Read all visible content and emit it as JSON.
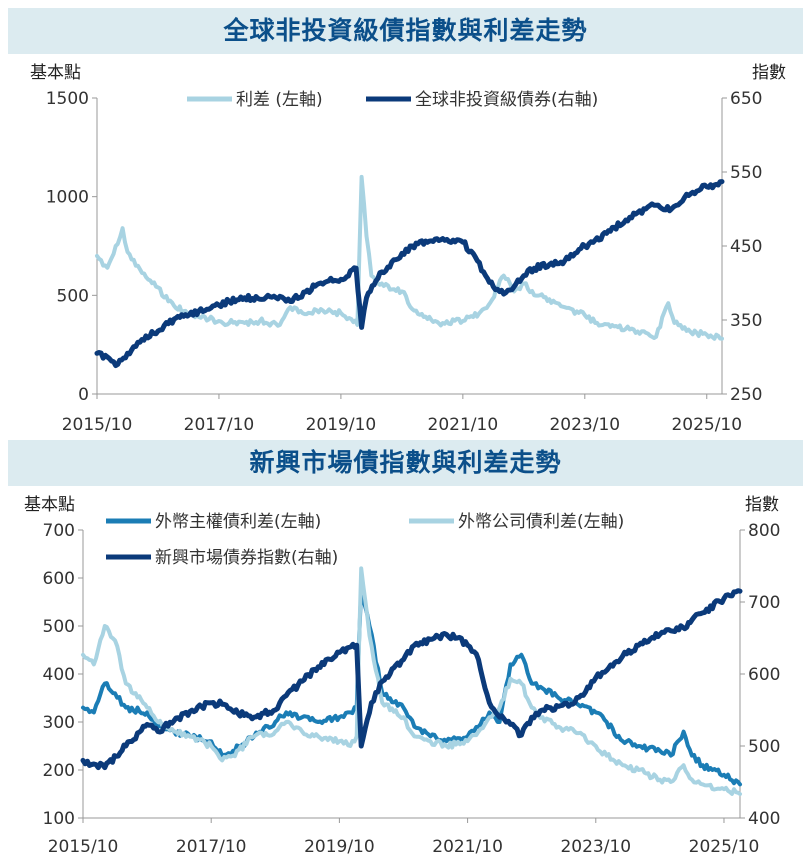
{
  "colors": {
    "title_bg": "#dcebf0",
    "title_text": "#0b4f8a",
    "dark_navy": "#0b3a7a",
    "mid_blue": "#1b7db5",
    "light_blue": "#a8d3e2"
  },
  "chart_data": [
    {
      "type": "line",
      "title": "全球非投資級債指數與利差走勢",
      "left_unit": "基本點",
      "right_unit": "指數",
      "x_ticks": [
        "2015/10",
        "2017/10",
        "2019/10",
        "2021/10",
        "2023/10",
        "2025/10"
      ],
      "y_left_ticks": [
        "0",
        "500",
        "1000",
        "1500"
      ],
      "y_right_ticks": [
        "250",
        "350",
        "450",
        "550",
        "650"
      ],
      "y_left_lim": [
        0,
        1500
      ],
      "y_right_lim": [
        250,
        650
      ],
      "series": [
        {
          "name": "利差 (左軸)",
          "axis": "left",
          "color": "#a8d3e2",
          "points": [
            [
              2015.83,
              700
            ],
            [
              2016.0,
              640
            ],
            [
              2016.17,
              760
            ],
            [
              2016.25,
              840
            ],
            [
              2016.33,
              720
            ],
            [
              2016.5,
              650
            ],
            [
              2016.67,
              580
            ],
            [
              2016.83,
              540
            ],
            [
              2017.0,
              470
            ],
            [
              2017.25,
              420
            ],
            [
              2017.5,
              390
            ],
            [
              2017.83,
              370
            ],
            [
              2018.0,
              360
            ],
            [
              2018.25,
              360
            ],
            [
              2018.5,
              370
            ],
            [
              2018.83,
              350
            ],
            [
              2019.0,
              440
            ],
            [
              2019.17,
              420
            ],
            [
              2019.33,
              410
            ],
            [
              2019.5,
              430
            ],
            [
              2019.67,
              420
            ],
            [
              2019.83,
              410
            ],
            [
              2020.0,
              380
            ],
            [
              2020.1,
              350
            ],
            [
              2020.17,
              1100
            ],
            [
              2020.25,
              800
            ],
            [
              2020.33,
              600
            ],
            [
              2020.5,
              560
            ],
            [
              2020.67,
              530
            ],
            [
              2020.83,
              520
            ],
            [
              2021.0,
              430
            ],
            [
              2021.25,
              380
            ],
            [
              2021.5,
              360
            ],
            [
              2021.83,
              370
            ],
            [
              2022.0,
              390
            ],
            [
              2022.25,
              450
            ],
            [
              2022.5,
              600
            ],
            [
              2022.67,
              520
            ],
            [
              2022.83,
              560
            ],
            [
              2023.0,
              500
            ],
            [
              2023.25,
              480
            ],
            [
              2023.5,
              440
            ],
            [
              2023.83,
              400
            ],
            [
              2024.0,
              360
            ],
            [
              2024.25,
              340
            ],
            [
              2024.5,
              330
            ],
            [
              2024.83,
              310
            ],
            [
              2025.0,
              290
            ],
            [
              2025.2,
              460
            ],
            [
              2025.3,
              360
            ],
            [
              2025.5,
              320
            ],
            [
              2025.83,
              300
            ],
            [
              2026.08,
              280
            ]
          ]
        },
        {
          "name": "全球非投資級債券(右軸)",
          "axis": "right",
          "color": "#0b3a7a",
          "points": [
            [
              2015.83,
              305
            ],
            [
              2016.0,
              300
            ],
            [
              2016.17,
              290
            ],
            [
              2016.33,
              305
            ],
            [
              2016.5,
              320
            ],
            [
              2016.83,
              335
            ],
            [
              2017.0,
              345
            ],
            [
              2017.25,
              355
            ],
            [
              2017.5,
              362
            ],
            [
              2017.83,
              370
            ],
            [
              2018.0,
              375
            ],
            [
              2018.25,
              380
            ],
            [
              2018.5,
              378
            ],
            [
              2018.83,
              382
            ],
            [
              2019.0,
              375
            ],
            [
              2019.25,
              388
            ],
            [
              2019.5,
              400
            ],
            [
              2019.83,
              405
            ],
            [
              2020.08,
              420
            ],
            [
              2020.17,
              340
            ],
            [
              2020.25,
              380
            ],
            [
              2020.5,
              415
            ],
            [
              2020.83,
              440
            ],
            [
              2021.0,
              450
            ],
            [
              2021.25,
              455
            ],
            [
              2021.5,
              460
            ],
            [
              2021.67,
              458
            ],
            [
              2021.83,
              455
            ],
            [
              2022.0,
              440
            ],
            [
              2022.17,
              415
            ],
            [
              2022.33,
              395
            ],
            [
              2022.5,
              385
            ],
            [
              2022.67,
              395
            ],
            [
              2022.83,
              410
            ],
            [
              2023.0,
              420
            ],
            [
              2023.25,
              425
            ],
            [
              2023.5,
              430
            ],
            [
              2023.67,
              440
            ],
            [
              2023.83,
              450
            ],
            [
              2024.0,
              458
            ],
            [
              2024.25,
              470
            ],
            [
              2024.5,
              485
            ],
            [
              2024.83,
              500
            ],
            [
              2025.0,
              505
            ],
            [
              2025.25,
              500
            ],
            [
              2025.33,
              505
            ],
            [
              2025.5,
              520
            ],
            [
              2025.83,
              530
            ],
            [
              2026.08,
              537
            ]
          ]
        }
      ]
    },
    {
      "type": "line",
      "title": "新興市場債指數與利差走勢",
      "left_unit": "基本點",
      "right_unit": "指數",
      "x_ticks": [
        "2015/10",
        "2017/10",
        "2019/10",
        "2021/10",
        "2023/10",
        "2025/10"
      ],
      "y_left_ticks": [
        "100",
        "200",
        "300",
        "400",
        "500",
        "600",
        "700"
      ],
      "y_right_ticks": [
        "400",
        "500",
        "600",
        "700",
        "800"
      ],
      "y_left_lim": [
        100,
        700
      ],
      "y_right_lim": [
        400,
        800
      ],
      "series": [
        {
          "name": "外幣主權債利差(左軸)",
          "axis": "left",
          "color": "#1b7db5",
          "points": [
            [
              2015.83,
              330
            ],
            [
              2016.0,
              320
            ],
            [
              2016.17,
              380
            ],
            [
              2016.33,
              360
            ],
            [
              2016.5,
              330
            ],
            [
              2016.83,
              320
            ],
            [
              2017.0,
              290
            ],
            [
              2017.25,
              280
            ],
            [
              2017.5,
              270
            ],
            [
              2017.83,
              260
            ],
            [
              2018.0,
              230
            ],
            [
              2018.17,
              240
            ],
            [
              2018.5,
              270
            ],
            [
              2018.83,
              300
            ],
            [
              2019.0,
              320
            ],
            [
              2019.25,
              310
            ],
            [
              2019.5,
              300
            ],
            [
              2019.83,
              310
            ],
            [
              2020.0,
              320
            ],
            [
              2020.1,
              330
            ],
            [
              2020.17,
              580
            ],
            [
              2020.3,
              500
            ],
            [
              2020.5,
              360
            ],
            [
              2020.83,
              330
            ],
            [
              2021.0,
              290
            ],
            [
              2021.25,
              270
            ],
            [
              2021.5,
              260
            ],
            [
              2021.83,
              270
            ],
            [
              2022.0,
              290
            ],
            [
              2022.17,
              320
            ],
            [
              2022.33,
              300
            ],
            [
              2022.5,
              420
            ],
            [
              2022.67,
              440
            ],
            [
              2022.83,
              380
            ],
            [
              2023.0,
              370
            ],
            [
              2023.25,
              350
            ],
            [
              2023.5,
              340
            ],
            [
              2023.83,
              320
            ],
            [
              2024.0,
              300
            ],
            [
              2024.25,
              260
            ],
            [
              2024.5,
              250
            ],
            [
              2024.83,
              240
            ],
            [
              2025.0,
              230
            ],
            [
              2025.2,
              280
            ],
            [
              2025.33,
              230
            ],
            [
              2025.5,
              210
            ],
            [
              2025.83,
              190
            ],
            [
              2026.08,
              170
            ]
          ]
        },
        {
          "name": "外幣公司債利差(左軸)",
          "axis": "left",
          "color": "#a8d3e2",
          "points": [
            [
              2015.83,
              440
            ],
            [
              2016.0,
              420
            ],
            [
              2016.17,
              500
            ],
            [
              2016.33,
              470
            ],
            [
              2016.5,
              380
            ],
            [
              2016.83,
              330
            ],
            [
              2017.0,
              300
            ],
            [
              2017.25,
              280
            ],
            [
              2017.5,
              270
            ],
            [
              2017.83,
              250
            ],
            [
              2018.0,
              220
            ],
            [
              2018.17,
              230
            ],
            [
              2018.5,
              270
            ],
            [
              2018.83,
              280
            ],
            [
              2019.0,
              300
            ],
            [
              2019.25,
              280
            ],
            [
              2019.5,
              270
            ],
            [
              2019.83,
              260
            ],
            [
              2020.0,
              250
            ],
            [
              2020.1,
              270
            ],
            [
              2020.17,
              620
            ],
            [
              2020.3,
              480
            ],
            [
              2020.5,
              340
            ],
            [
              2020.83,
              310
            ],
            [
              2021.0,
              270
            ],
            [
              2021.25,
              260
            ],
            [
              2021.5,
              250
            ],
            [
              2021.83,
              260
            ],
            [
              2022.0,
              280
            ],
            [
              2022.17,
              310
            ],
            [
              2022.33,
              330
            ],
            [
              2022.5,
              390
            ],
            [
              2022.67,
              380
            ],
            [
              2022.83,
              330
            ],
            [
              2023.0,
              310
            ],
            [
              2023.25,
              290
            ],
            [
              2023.5,
              280
            ],
            [
              2023.83,
              250
            ],
            [
              2024.0,
              230
            ],
            [
              2024.25,
              210
            ],
            [
              2024.5,
              200
            ],
            [
              2024.83,
              180
            ],
            [
              2025.0,
              175
            ],
            [
              2025.2,
              210
            ],
            [
              2025.33,
              180
            ],
            [
              2025.5,
              170
            ],
            [
              2025.83,
              160
            ],
            [
              2026.08,
              150
            ]
          ]
        },
        {
          "name": "新興市場債券指數(右軸)",
          "axis": "right",
          "color": "#0b3a7a",
          "points": [
            [
              2015.83,
              480
            ],
            [
              2016.0,
              475
            ],
            [
              2016.17,
              470
            ],
            [
              2016.5,
              500
            ],
            [
              2016.83,
              530
            ],
            [
              2017.0,
              520
            ],
            [
              2017.25,
              535
            ],
            [
              2017.5,
              548
            ],
            [
              2017.83,
              560
            ],
            [
              2018.0,
              558
            ],
            [
              2018.25,
              545
            ],
            [
              2018.5,
              540
            ],
            [
              2018.83,
              550
            ],
            [
              2019.0,
              570
            ],
            [
              2019.25,
              590
            ],
            [
              2019.5,
              610
            ],
            [
              2019.83,
              630
            ],
            [
              2020.1,
              640
            ],
            [
              2020.17,
              500
            ],
            [
              2020.33,
              560
            ],
            [
              2020.5,
              590
            ],
            [
              2020.83,
              620
            ],
            [
              2021.0,
              640
            ],
            [
              2021.25,
              648
            ],
            [
              2021.5,
              655
            ],
            [
              2021.67,
              650
            ],
            [
              2021.83,
              640
            ],
            [
              2022.0,
              620
            ],
            [
              2022.17,
              560
            ],
            [
              2022.33,
              540
            ],
            [
              2022.5,
              530
            ],
            [
              2022.67,
              515
            ],
            [
              2022.83,
              540
            ],
            [
              2023.0,
              550
            ],
            [
              2023.25,
              555
            ],
            [
              2023.5,
              560
            ],
            [
              2023.67,
              575
            ],
            [
              2023.83,
              595
            ],
            [
              2024.0,
              605
            ],
            [
              2024.25,
              625
            ],
            [
              2024.5,
              640
            ],
            [
              2024.83,
              655
            ],
            [
              2025.0,
              660
            ],
            [
              2025.25,
              665
            ],
            [
              2025.33,
              675
            ],
            [
              2025.5,
              685
            ],
            [
              2025.83,
              705
            ],
            [
              2026.08,
              715
            ]
          ]
        }
      ]
    }
  ]
}
